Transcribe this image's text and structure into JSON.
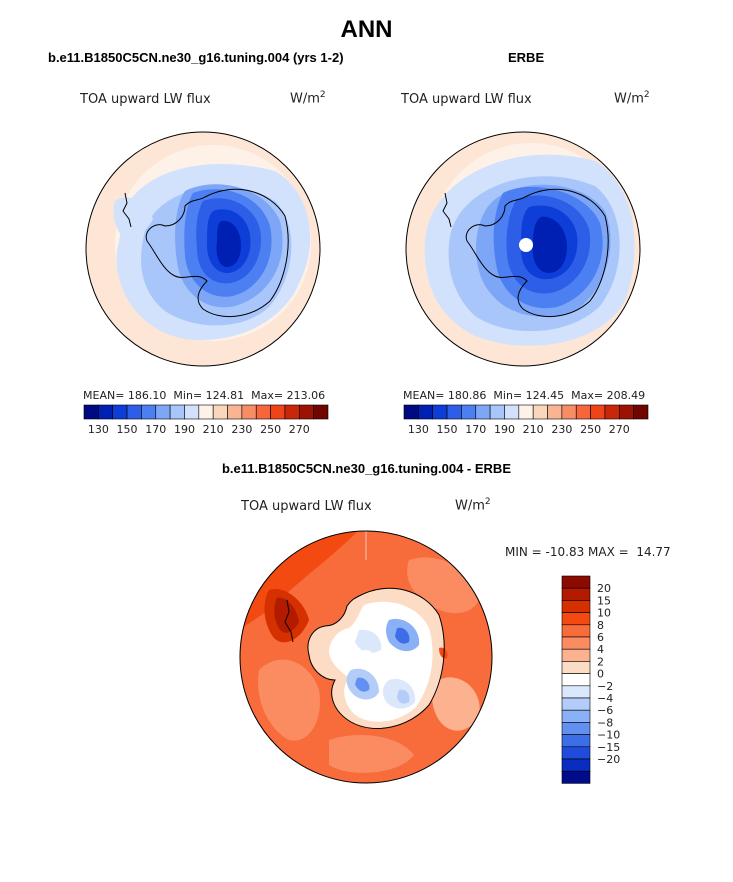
{
  "page": {
    "title": "ANN"
  },
  "left_panel": {
    "case_label": "b.e11.B1850C5CN.ne30_g16.tuning.004 (yrs 1-2)",
    "variable": "TOA upward LW flux",
    "units_base": "W/m",
    "units_exp": "2",
    "mean_label": "MEAN=",
    "mean": "186.10",
    "min_label": "Min=",
    "min": "124.81",
    "max_label": "Max=",
    "max": "213.06"
  },
  "right_panel": {
    "case_label": "ERBE",
    "variable": "TOA upward LW flux",
    "units_base": "W/m",
    "units_exp": "2",
    "mean_label": "MEAN=",
    "mean": "180.86",
    "min_label": "Min=",
    "min": "124.45",
    "max_label": "Max=",
    "max": "208.49"
  },
  "diff_panel": {
    "case_label": "b.e11.B1850C5CN.ne30_g16.tuning.004 - ERBE",
    "variable": "TOA upward LW flux",
    "units_base": "W/m",
    "units_exp": "2",
    "minmax_text": "MIN = -10.83 MAX =  14.77"
  },
  "abs_colorbar": {
    "colors": [
      "#000a80",
      "#0020b4",
      "#0d3ed8",
      "#2c5ee8",
      "#4c80f2",
      "#7ea6f7",
      "#a9c6fa",
      "#d3e2fc",
      "#fdf1e8",
      "#fbd6bd",
      "#f9b493",
      "#f78d64",
      "#f5673a",
      "#ef4418",
      "#c9260a",
      "#9e1204",
      "#6e0700"
    ],
    "ticks": [
      "130",
      "150",
      "170",
      "190",
      "210",
      "230",
      "250",
      "270"
    ]
  },
  "diff_colorbar": {
    "colors": [
      "#8c0b00",
      "#b31b00",
      "#d43000",
      "#f24a10",
      "#f86b3a",
      "#fb8c62",
      "#fdb28f",
      "#fddcc6",
      "#ffffff",
      "#dbe8fc",
      "#b4ccf8",
      "#8ab0f5",
      "#6390f0",
      "#3e6de8",
      "#1f4cdc",
      "#0a2cc0",
      "#000c8a"
    ],
    "labels": [
      "20",
      "15",
      "10",
      "8",
      "6",
      "4",
      "2",
      "0",
      "−2",
      "−4",
      "−6",
      "−8",
      "−10",
      "−15",
      "−20"
    ]
  }
}
